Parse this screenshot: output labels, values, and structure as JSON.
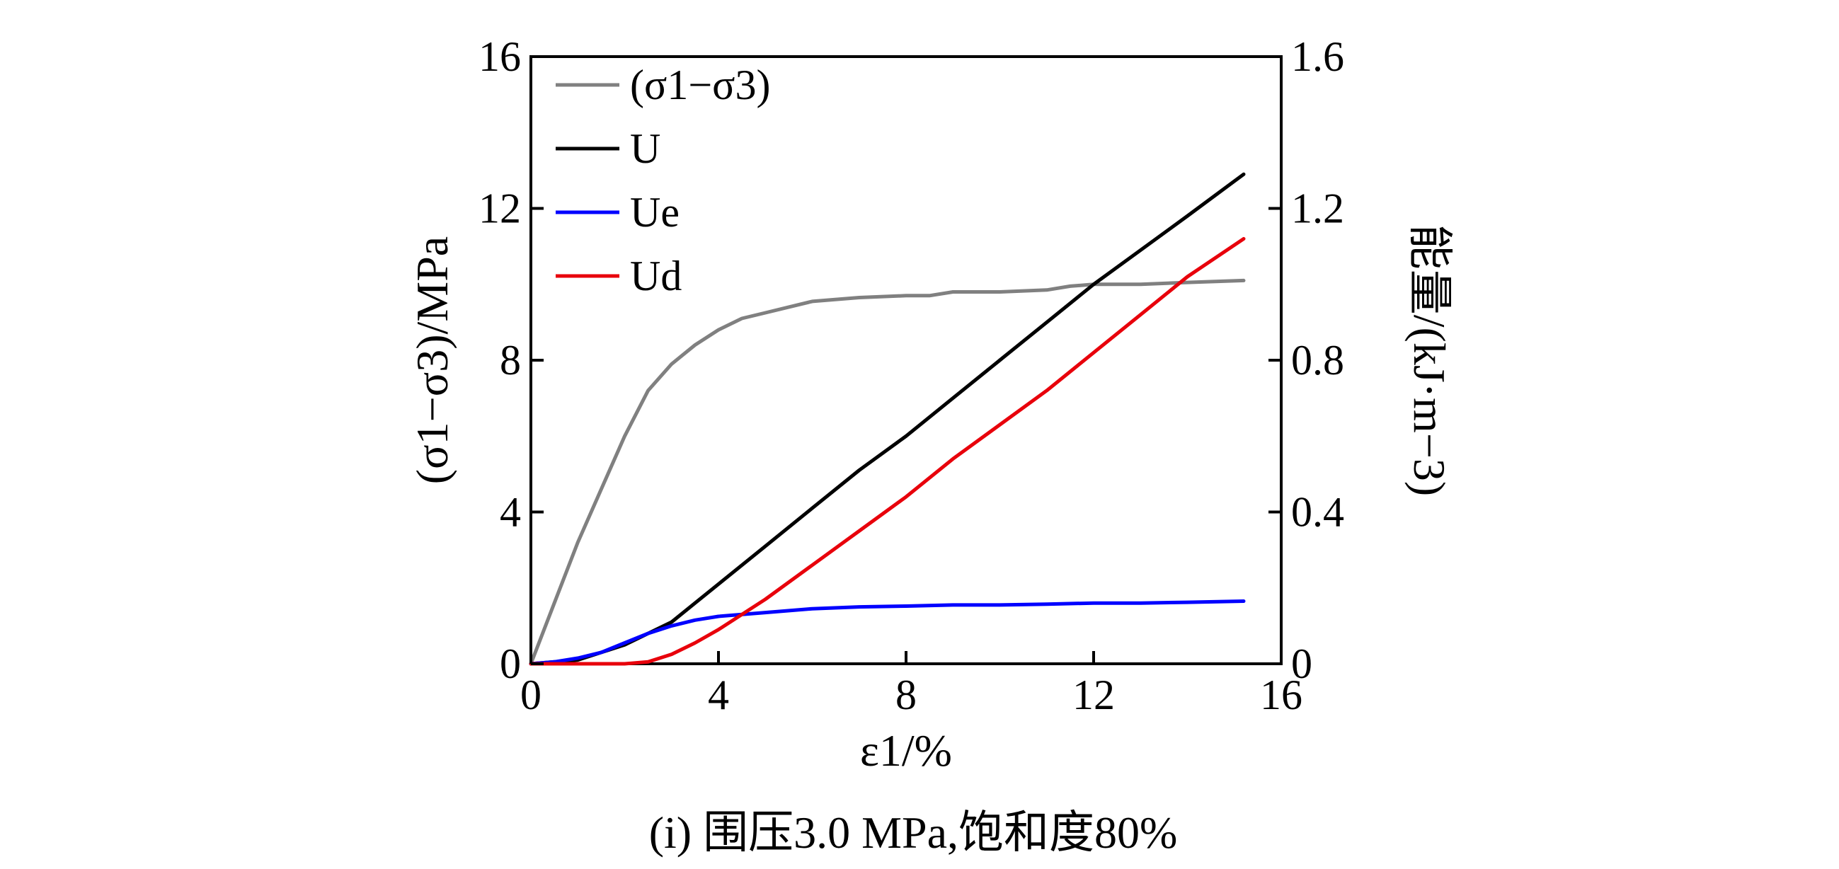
{
  "chart_data": {
    "type": "line",
    "caption": "(i) 围压3.0 MPa,饱和度80%",
    "xlabel": "ε1/%",
    "ylabel_left": "(σ1−σ3)/MPa",
    "ylabel_right": "能量/(kJ·m−3)",
    "xlim": [
      0,
      16
    ],
    "ylim_left": [
      0,
      16
    ],
    "ylim_right": [
      0,
      1.6
    ],
    "x_ticks": [
      "0",
      "4",
      "8",
      "12",
      "16"
    ],
    "y_left_ticks": [
      "0",
      "4",
      "8",
      "12",
      "16"
    ],
    "y_right_ticks": [
      "0",
      "0.4",
      "0.8",
      "1.2",
      "1.6"
    ],
    "grid": false,
    "legend_position": "top-left",
    "series": [
      {
        "name": "(σ1−σ3)",
        "axis": "left",
        "color": "#808080",
        "x": [
          0,
          0.5,
          1,
          1.5,
          2,
          2.5,
          3,
          3.5,
          4,
          4.5,
          5,
          5.5,
          6,
          7,
          8,
          8.5,
          9,
          10,
          11,
          11.5,
          12,
          13,
          14,
          15.2
        ],
        "y": [
          0,
          1.6,
          3.2,
          4.6,
          6.0,
          7.2,
          7.9,
          8.4,
          8.8,
          9.1,
          9.25,
          9.4,
          9.55,
          9.65,
          9.7,
          9.7,
          9.8,
          9.8,
          9.85,
          9.95,
          10.0,
          10.0,
          10.05,
          10.1
        ]
      },
      {
        "name": "U",
        "axis": "right",
        "color": "#000000",
        "x": [
          0,
          1,
          2,
          2.5,
          3,
          3.5,
          4,
          5,
          6,
          7,
          8,
          9,
          10,
          11,
          12,
          13,
          14,
          15.2
        ],
        "y": [
          0,
          0.01,
          0.05,
          0.08,
          0.11,
          0.16,
          0.21,
          0.31,
          0.41,
          0.51,
          0.6,
          0.7,
          0.8,
          0.9,
          1.0,
          1.09,
          1.18,
          1.29
        ]
      },
      {
        "name": "Ue",
        "axis": "right",
        "color": "#0000ff",
        "x": [
          0,
          0.5,
          1,
          1.5,
          2,
          2.5,
          3,
          3.5,
          4,
          5,
          6,
          7,
          8,
          9,
          10,
          11,
          12,
          13,
          14,
          15.2
        ],
        "y": [
          0,
          0.005,
          0.015,
          0.03,
          0.055,
          0.08,
          0.1,
          0.115,
          0.125,
          0.135,
          0.145,
          0.15,
          0.152,
          0.155,
          0.155,
          0.157,
          0.16,
          0.16,
          0.162,
          0.165
        ]
      },
      {
        "name": "Ud",
        "axis": "right",
        "color": "#e8000b",
        "x": [
          0,
          1,
          2,
          2.5,
          3,
          3.5,
          4,
          5,
          6,
          7,
          8,
          9,
          10,
          11,
          12,
          13,
          14,
          15.2
        ],
        "y": [
          0,
          0,
          0,
          0.005,
          0.025,
          0.055,
          0.09,
          0.17,
          0.26,
          0.35,
          0.44,
          0.54,
          0.63,
          0.72,
          0.82,
          0.92,
          1.02,
          1.12
        ]
      }
    ]
  }
}
